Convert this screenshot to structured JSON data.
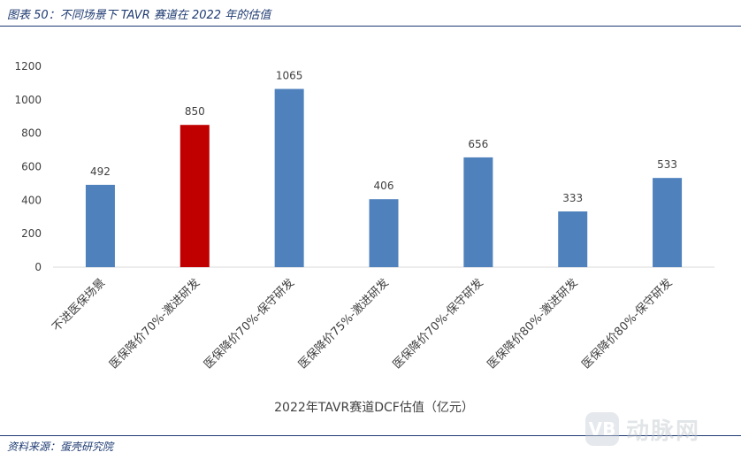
{
  "figure": {
    "title": "图表 50：不同场景下 TAVR 赛道在 2022 年的估值",
    "source": "资料来源：蛋壳研究院",
    "watermark_text": "动脉网",
    "watermark_badge": "VB"
  },
  "chart_data": {
    "type": "bar",
    "categories": [
      "不进医保场景",
      "医保降价70%-激进研发",
      "医保降价70%-保守研发",
      "医保降价75%-激进研发",
      "医保降价70%-保守研发",
      "医保降价80%-激进研发",
      "医保降价80%-保守研发"
    ],
    "values": [
      492,
      850,
      1065,
      406,
      656,
      333,
      533
    ],
    "data_labels": [
      "492",
      "850",
      "1065",
      "406",
      "656",
      "333",
      "533"
    ],
    "bar_colors": [
      "#4f81bd",
      "#c00000",
      "#4f81bd",
      "#4f81bd",
      "#4f81bd",
      "#4f81bd",
      "#4f81bd"
    ],
    "xlabel": "2022年TAVR赛道DCF估值（亿元）",
    "ylabel": "",
    "ylim": [
      0,
      1200
    ],
    "yticks": [
      "0",
      "200",
      "400",
      "600",
      "800",
      "1000",
      "1200"
    ],
    "grid": false,
    "legend": "none"
  }
}
